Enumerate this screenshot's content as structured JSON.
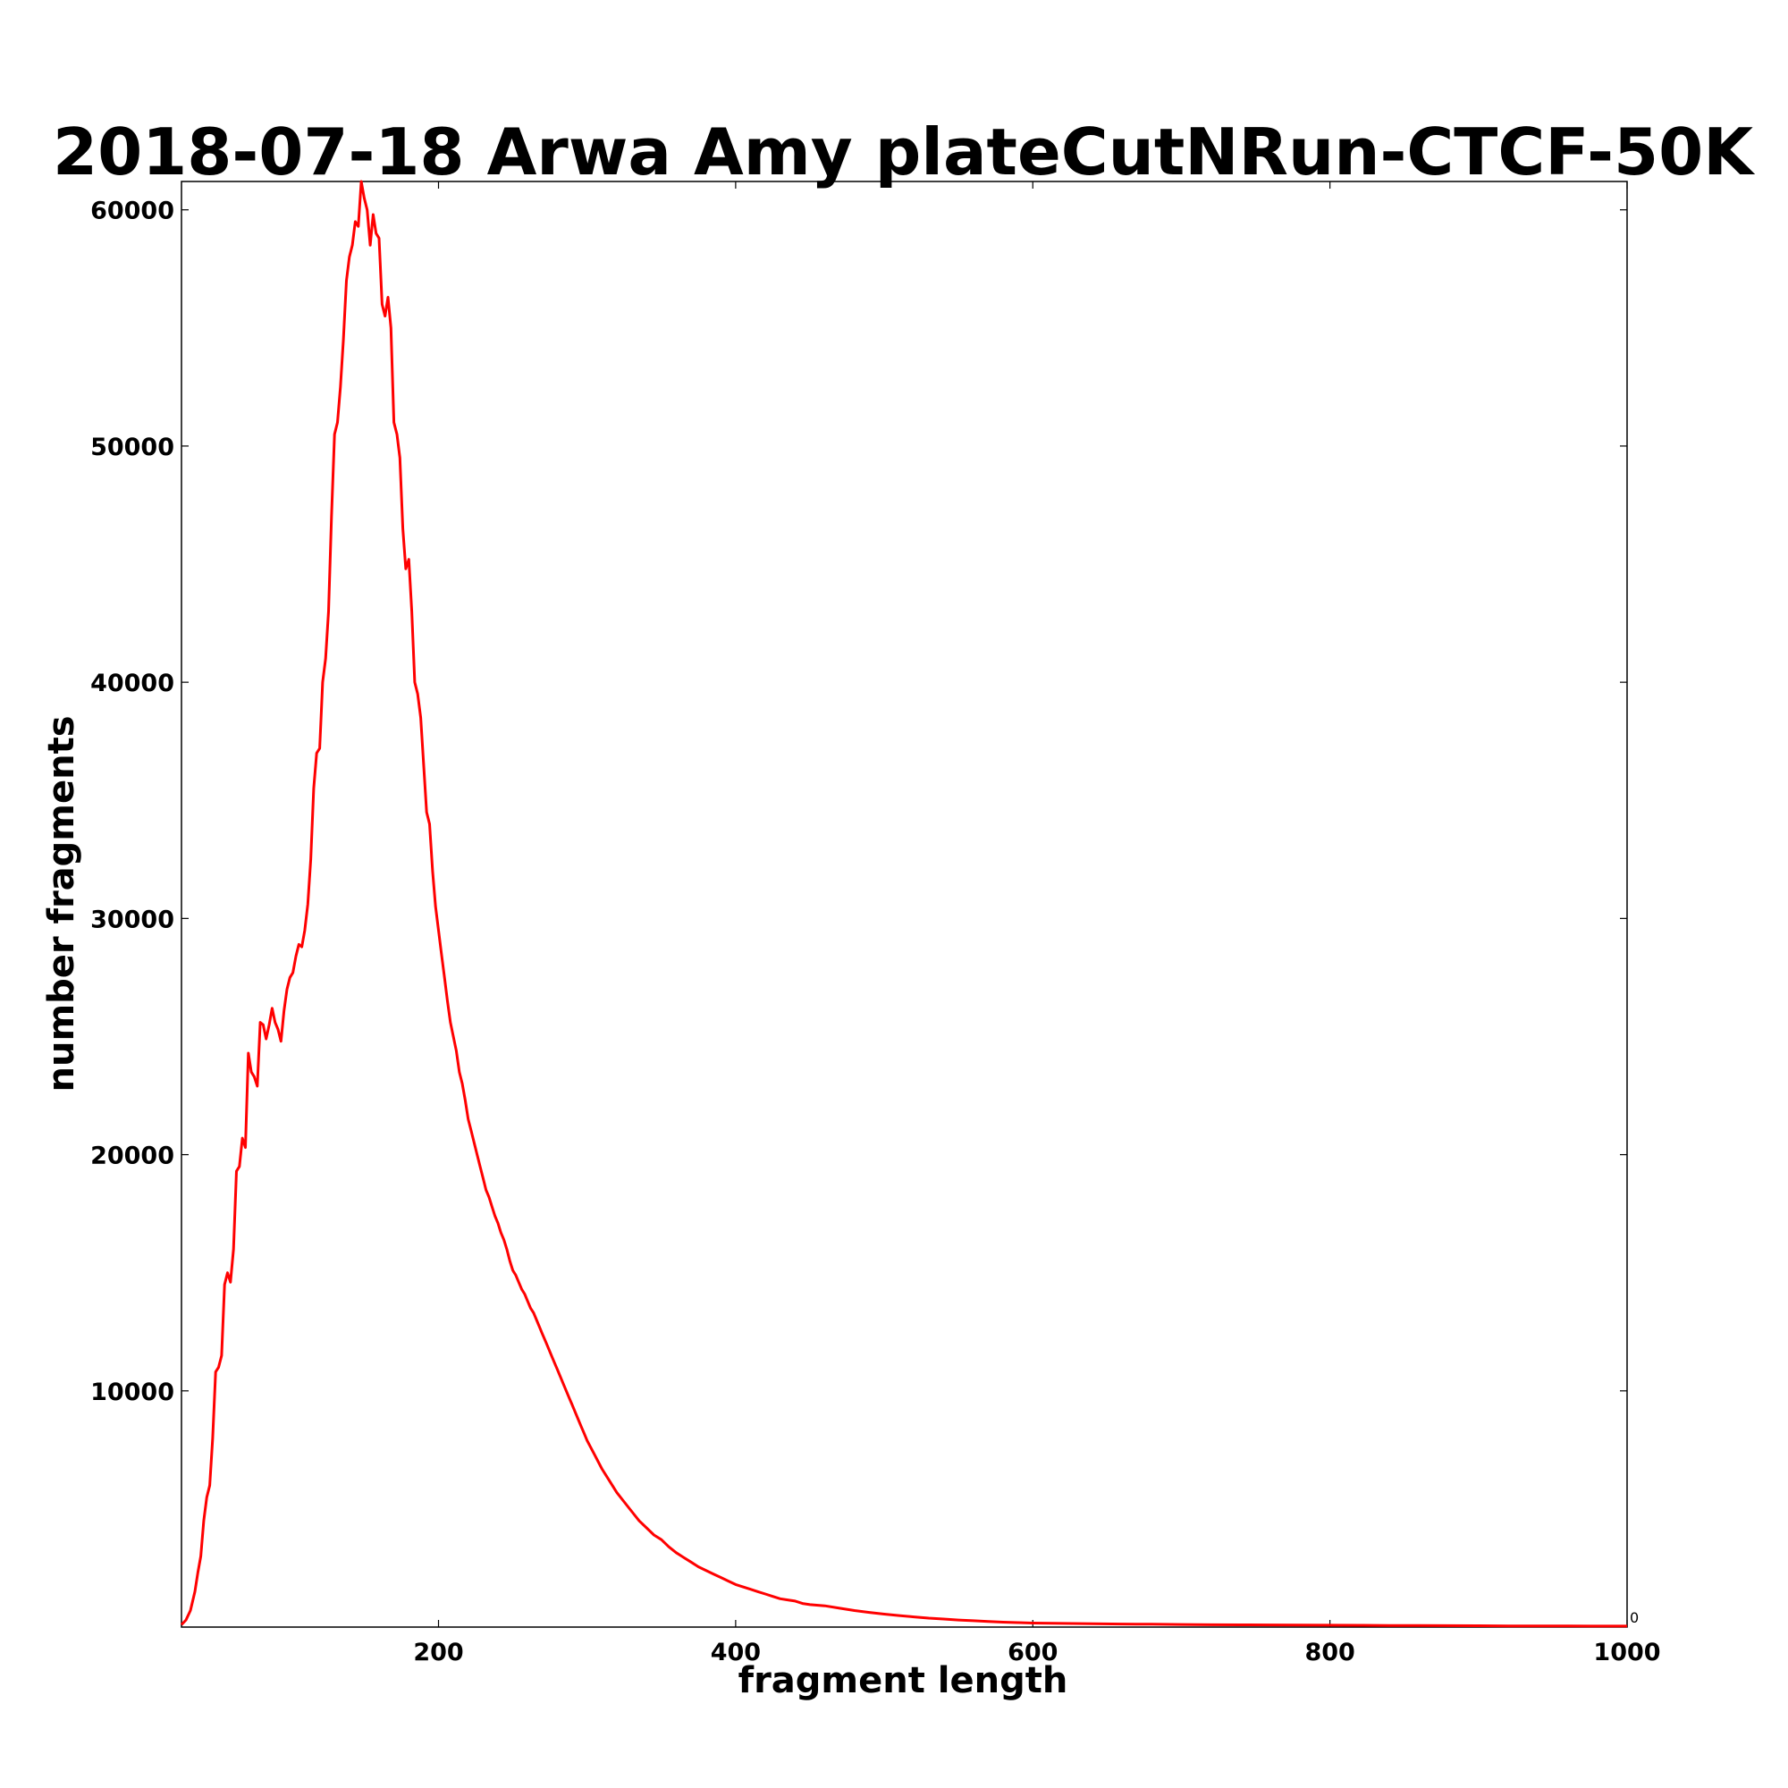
{
  "chart_data": {
    "type": "line",
    "title": "2018-07-18 Arwa Amy plateCutNRun-CTCF-50K",
    "xlabel": "fragment length",
    "ylabel": "number fragments",
    "xlim": [
      27,
      1000
    ],
    "ylim": [
      0,
      61200
    ],
    "x_ticks": [
      200,
      400,
      600,
      800,
      1000
    ],
    "x_tick_labels": [
      "200",
      "400",
      "600",
      "800",
      "1000"
    ],
    "y_ticks": [
      10000,
      20000,
      30000,
      40000,
      50000,
      60000
    ],
    "y_tick_labels": [
      "10000",
      "20000",
      "30000",
      "40000",
      "50000",
      "60000"
    ],
    "y_extra_label": "0",
    "grid": false,
    "legend": "none",
    "series": [
      {
        "color": "#ff0000",
        "x": [
          27,
          30,
          33,
          36,
          38,
          40,
          42,
          44,
          46,
          48,
          50,
          52,
          54,
          56,
          58,
          60,
          62,
          64,
          66,
          68,
          70,
          72,
          74,
          76,
          78,
          80,
          82,
          84,
          86,
          88,
          90,
          92,
          94,
          96,
          98,
          100,
          102,
          104,
          106,
          108,
          110,
          112,
          114,
          116,
          118,
          120,
          122,
          124,
          126,
          128,
          130,
          132,
          134,
          136,
          138,
          140,
          142,
          144,
          146,
          148,
          150,
          152,
          154,
          156,
          158,
          160,
          162,
          164,
          166,
          168,
          170,
          172,
          174,
          176,
          178,
          180,
          182,
          184,
          186,
          188,
          190,
          192,
          194,
          196,
          198,
          200,
          202,
          204,
          206,
          208,
          210,
          212,
          214,
          216,
          218,
          220,
          222,
          224,
          226,
          228,
          230,
          232,
          234,
          236,
          238,
          240,
          242,
          244,
          246,
          248,
          250,
          252,
          254,
          256,
          258,
          260,
          262,
          264,
          266,
          268,
          270,
          272,
          274,
          276,
          278,
          280,
          282,
          284,
          286,
          288,
          290,
          292,
          294,
          296,
          298,
          300,
          305,
          310,
          315,
          320,
          325,
          330,
          335,
          340,
          345,
          350,
          355,
          360,
          365,
          370,
          375,
          380,
          385,
          390,
          395,
          400,
          405,
          410,
          415,
          420,
          425,
          430,
          435,
          440,
          445,
          450,
          460,
          470,
          480,
          490,
          500,
          510,
          520,
          530,
          540,
          550,
          560,
          570,
          580,
          590,
          600,
          620,
          640,
          660,
          680,
          700,
          720,
          740,
          760,
          780,
          800,
          820,
          840,
          860,
          880,
          900,
          920,
          940,
          960,
          980,
          1000
        ],
        "y": [
          100,
          300,
          700,
          1500,
          2300,
          3000,
          4500,
          5500,
          6000,
          8000,
          10800,
          11000,
          11500,
          14500,
          15000,
          14600,
          16000,
          19300,
          19500,
          20700,
          20300,
          24300,
          23500,
          23300,
          22900,
          25600,
          25500,
          24900,
          25500,
          26200,
          25600,
          25300,
          24800,
          26100,
          27000,
          27500,
          27700,
          28400,
          28900,
          28800,
          29500,
          30600,
          32500,
          35500,
          37000,
          37200,
          40000,
          41000,
          43000,
          47000,
          50500,
          51000,
          52500,
          54500,
          57000,
          58000,
          58500,
          59500,
          59300,
          61200,
          60500,
          60000,
          58500,
          59800,
          59000,
          58800,
          56000,
          55500,
          56300,
          55000,
          51000,
          50500,
          49500,
          46500,
          44800,
          45200,
          43000,
          40000,
          39500,
          38500,
          36500,
          34500,
          34000,
          32000,
          30500,
          29500,
          28500,
          27500,
          26500,
          25600,
          25000,
          24400,
          23500,
          23000,
          22300,
          21500,
          21000,
          20500,
          20000,
          19500,
          19000,
          18500,
          18200,
          17800,
          17400,
          17100,
          16700,
          16400,
          16000,
          15500,
          15100,
          14900,
          14600,
          14300,
          14100,
          13800,
          13500,
          13300,
          13000,
          12700,
          12400,
          12100,
          11800,
          11500,
          11200,
          10900,
          10600,
          10300,
          10000,
          9700,
          9400,
          9100,
          8800,
          8500,
          8200,
          7900,
          7300,
          6700,
          6200,
          5700,
          5300,
          4900,
          4500,
          4200,
          3900,
          3700,
          3400,
          3150,
          2950,
          2750,
          2550,
          2400,
          2250,
          2100,
          1950,
          1800,
          1700,
          1600,
          1500,
          1400,
          1300,
          1200,
          1150,
          1100,
          1000,
          950,
          900,
          800,
          700,
          620,
          550,
          490,
          430,
          380,
          340,
          300,
          270,
          240,
          210,
          190,
          170,
          155,
          140,
          130,
          120,
          110,
          100,
          95,
          90,
          85,
          80,
          75,
          70,
          65,
          60,
          55,
          50,
          48,
          45,
          42,
          40
        ]
      }
    ]
  }
}
